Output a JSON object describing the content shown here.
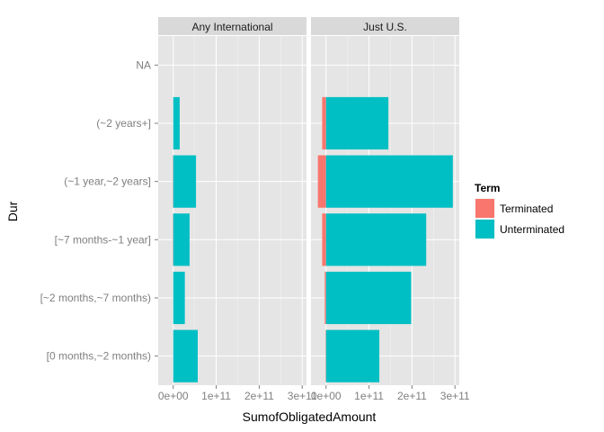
{
  "chart_data": {
    "type": "bar",
    "orientation": "horizontal",
    "stacked": true,
    "facets": [
      "Any International",
      "Just U.S."
    ],
    "categories": [
      "NA",
      "(~2 years+]",
      "(~1 year,~2 years]",
      "[~7 months-~1 year]",
      "[~2 months,~7 months)",
      "[0 months,~2 months)"
    ],
    "series": [
      {
        "name": "Terminated",
        "color": "#F8766D",
        "values": {
          "Any International": [
            0,
            0,
            500000000.0,
            500000000.0,
            0,
            0
          ],
          "Just U.S.": [
            0,
            9000000000.0,
            19000000000.0,
            9000000000.0,
            3000000000.0,
            1000000000.0
          ]
        }
      },
      {
        "name": "Unterminated",
        "color": "#00BFC4",
        "values": {
          "Any International": [
            0,
            15000000000.0,
            53000000000.0,
            38000000000.0,
            27000000000.0,
            57000000000.0
          ],
          "Just U.S.": [
            0,
            145000000000.0,
            295000000000.0,
            233000000000.0,
            198000000000.0,
            124000000000.0
          ]
        }
      }
    ],
    "xlabel": "SumofObligatedAmount",
    "ylabel": "Dur",
    "xlim": [
      -35000000000.0,
      310000000000.0
    ],
    "xticks": [
      0,
      100000000000.0,
      200000000000.0,
      300000000000.0
    ],
    "xtick_labels": [
      "0e+00",
      "1e+11",
      "2e+11",
      "3e+11"
    ],
    "legend": {
      "title": "Term",
      "position": "right"
    },
    "grid": true
  }
}
